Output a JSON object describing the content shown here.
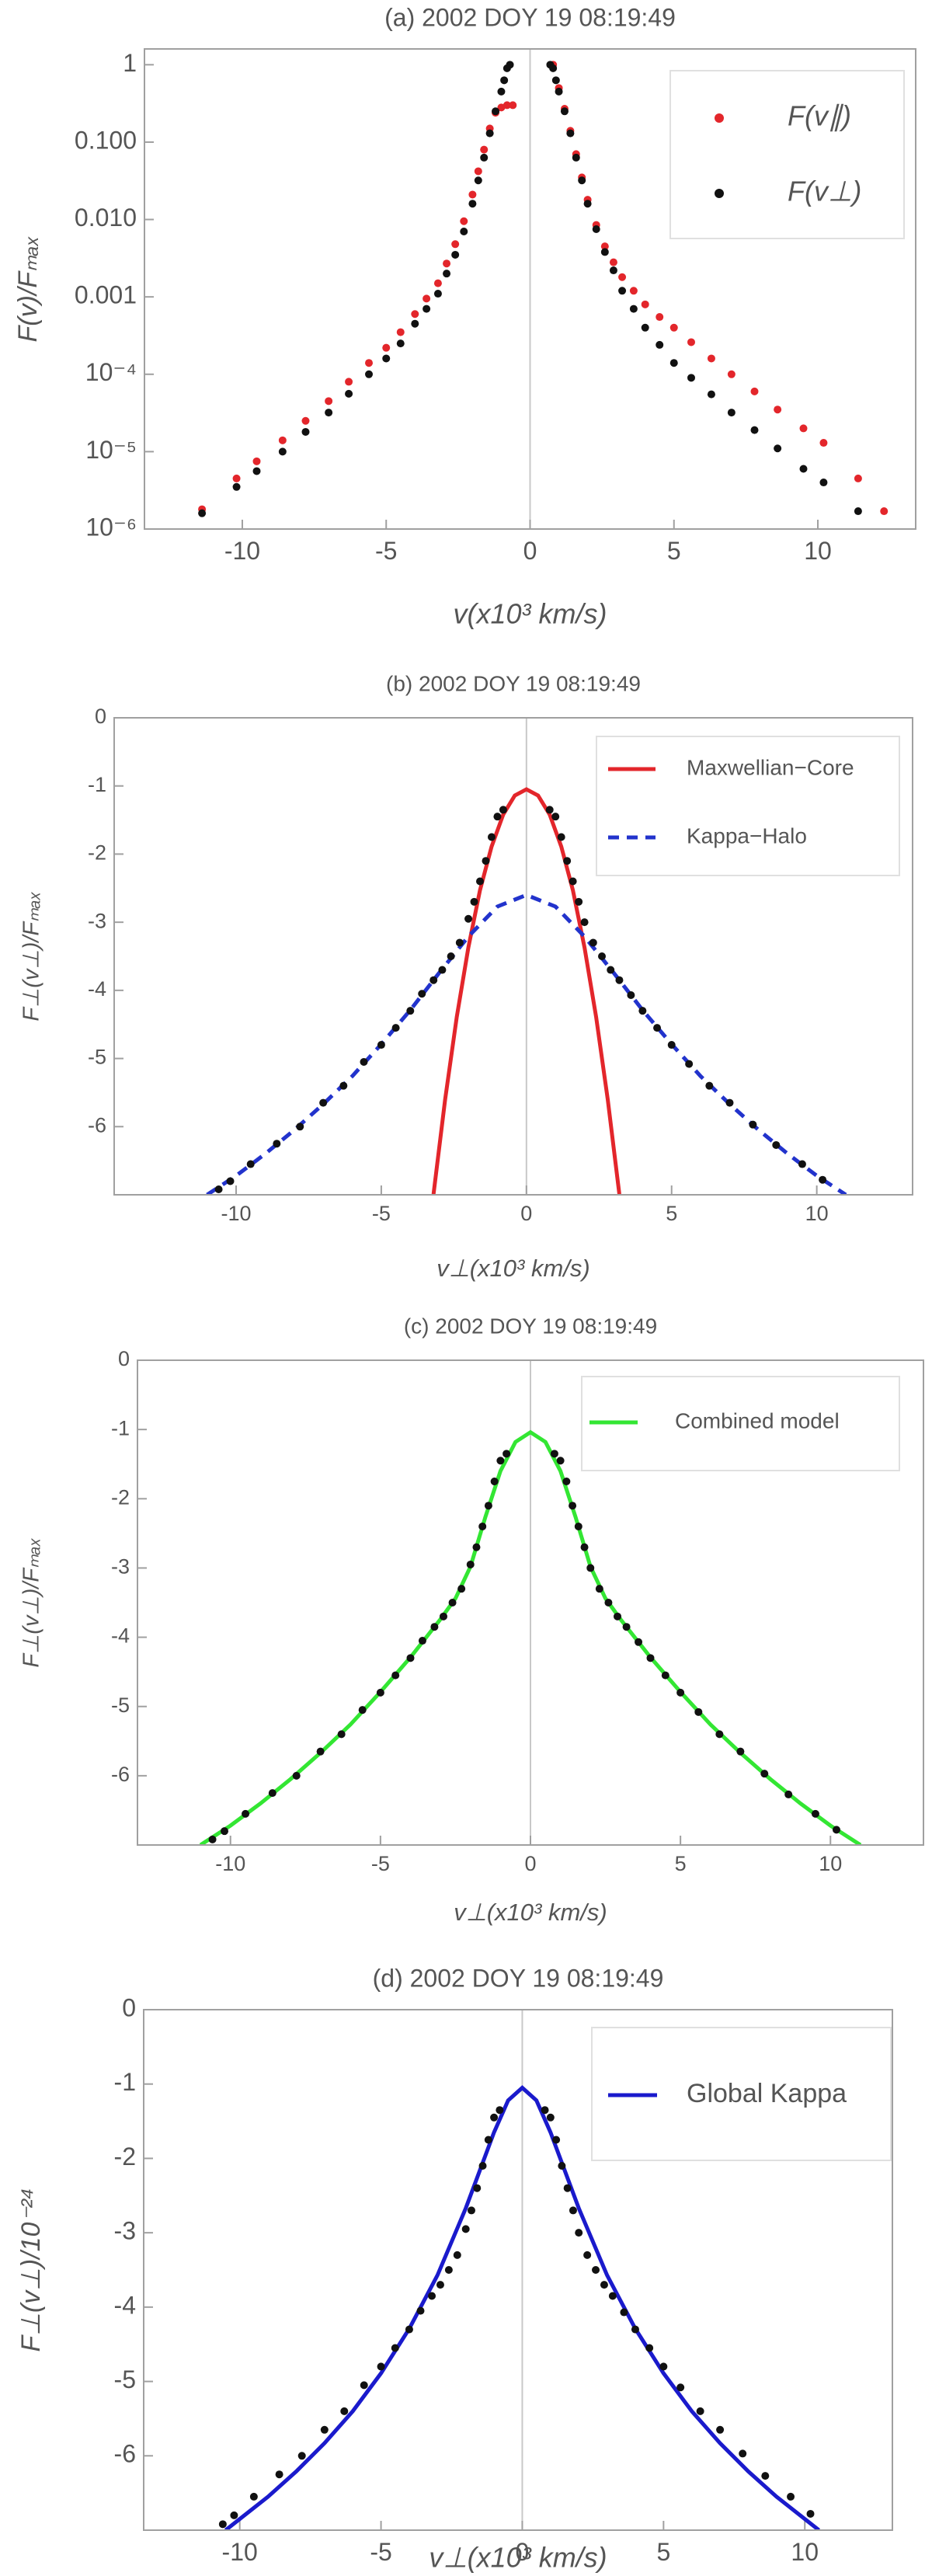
{
  "chart_data": [
    {
      "type": "scatter",
      "title": "(a) 2002 DOY 19 08:19:49",
      "x_label": "v(x10³ km/s)",
      "y_label": "F(v)/Fₘₐₓ",
      "log_y": true,
      "xlim": [
        -13.4,
        13.4
      ],
      "ylim": [
        1e-06,
        1.6
      ],
      "xticks": [
        -10,
        -5,
        0,
        5,
        10
      ],
      "yticks": [
        1,
        {
          "value": 0.1,
          "label": "0.100"
        },
        {
          "value": 0.01,
          "label": "0.010"
        },
        0.001,
        {
          "value": 0.0001,
          "label": "10⁻⁴"
        },
        {
          "value": 1e-05,
          "label": "10⁻⁵"
        },
        {
          "value": 1e-06,
          "label": "10⁻⁶"
        }
      ],
      "legend": "upper right",
      "series": [
        {
          "name": "F(v∥)",
          "color": "#e3262b",
          "style": "markers",
          "x": [
            -11.4,
            -10.2,
            -9.5,
            -8.6,
            -7.8,
            -7.0,
            -6.3,
            -5.6,
            -5.0,
            -4.5,
            -4.0,
            -3.6,
            -3.2,
            -2.9,
            -2.6,
            -2.3,
            -2.0,
            -1.8,
            -1.6,
            -1.4,
            -1.2,
            -1.0,
            -0.8,
            -0.6,
            0.8,
            1.0,
            1.2,
            1.4,
            1.6,
            1.8,
            2.0,
            2.3,
            2.6,
            2.9,
            3.2,
            3.6,
            4.0,
            4.5,
            5.0,
            5.6,
            6.3,
            7.0,
            7.8,
            8.6,
            9.5,
            10.2,
            11.4,
            12.3
          ],
          "values": [
            1.8e-06,
            4.5e-06,
            7.5e-06,
            1.4e-05,
            2.5e-05,
            4.5e-05,
            8e-05,
            0.00014,
            0.00022,
            0.00035,
            0.0006,
            0.00095,
            0.0015,
            0.0027,
            0.0048,
            0.0095,
            0.021,
            0.042,
            0.08,
            0.15,
            0.24,
            0.28,
            0.3,
            0.3,
            1.0,
            0.5,
            0.27,
            0.14,
            0.07,
            0.035,
            0.018,
            0.0085,
            0.0045,
            0.0028,
            0.0018,
            0.0012,
            0.0008,
            0.00055,
            0.0004,
            0.00026,
            0.00016,
            0.0001,
            6e-05,
            3.5e-05,
            2e-05,
            1.3e-05,
            4.5e-06,
            1.7e-06
          ]
        },
        {
          "name": "F(v⊥)",
          "color": "#111111",
          "style": "markers",
          "x": [
            -11.4,
            -10.2,
            -9.5,
            -8.6,
            -7.8,
            -7.0,
            -6.3,
            -5.6,
            -5.0,
            -4.5,
            -4.0,
            -3.6,
            -3.2,
            -2.9,
            -2.6,
            -2.3,
            -2.0,
            -1.8,
            -1.6,
            -1.4,
            -1.2,
            -1.0,
            -0.9,
            -0.8,
            -0.7,
            0.7,
            0.8,
            0.9,
            1.0,
            1.2,
            1.4,
            1.6,
            1.8,
            2.0,
            2.3,
            2.6,
            2.9,
            3.2,
            3.6,
            4.0,
            4.5,
            5.0,
            5.6,
            6.3,
            7.0,
            7.8,
            8.6,
            9.5,
            10.2,
            11.4
          ],
          "values": [
            1.6e-06,
            3.5e-06,
            5.6e-06,
            1e-05,
            1.8e-05,
            3.2e-05,
            5.6e-05,
            0.0001,
            0.00016,
            0.00025,
            0.00045,
            0.0007,
            0.0011,
            0.002,
            0.0035,
            0.007,
            0.016,
            0.032,
            0.063,
            0.13,
            0.25,
            0.45,
            0.63,
            0.9,
            1.0,
            1.0,
            0.9,
            0.63,
            0.45,
            0.25,
            0.13,
            0.063,
            0.032,
            0.016,
            0.0075,
            0.0038,
            0.0022,
            0.0012,
            0.0007,
            0.0004,
            0.00024,
            0.00014,
            9e-05,
            5.5e-05,
            3.2e-05,
            1.9e-05,
            1.1e-05,
            6e-06,
            4e-06,
            1.7e-06
          ]
        }
      ]
    },
    {
      "type": "line",
      "title": "(b) 2002 DOY 19 08:19:49",
      "x_label": "v⊥(x10³ km/s)",
      "y_label": "F⊥(v⊥)/Fₘₐₓ",
      "xlim": [
        -14.2,
        13.3
      ],
      "ylim": [
        -7,
        0
      ],
      "xticks": [
        -10,
        -5,
        0,
        5,
        10
      ],
      "yticks": [
        0,
        -1,
        -2,
        -3,
        -4,
        -5,
        -6
      ],
      "legend": "upper right",
      "series": [
        {
          "name": "Maxwellian−Core",
          "color": "#e3262b",
          "style": "solid",
          "x": [
            -3.2,
            -2.8,
            -2.4,
            -2.0,
            -1.6,
            -1.2,
            -0.8,
            -0.4,
            0,
            0.4,
            0.8,
            1.2,
            1.6,
            2.0,
            2.4,
            2.8,
            3.2
          ],
          "values": [
            -6.99,
            -5.6,
            -4.39,
            -3.37,
            -2.53,
            -1.89,
            -1.42,
            -1.14,
            -1.05,
            -1.14,
            -1.42,
            -1.89,
            -2.53,
            -3.37,
            -4.39,
            -5.6,
            -6.99
          ]
        },
        {
          "name": "Kappa−Halo",
          "color": "#2233cc",
          "style": "dashed",
          "x": [
            -11,
            -10,
            -9,
            -8,
            -7,
            -6,
            -5,
            -4,
            -3,
            -2,
            -1,
            0,
            1,
            2,
            3,
            4,
            5,
            6,
            7,
            8,
            9,
            10,
            11
          ],
          "values": [
            -7.0,
            -6.72,
            -6.4,
            -6.05,
            -5.67,
            -5.26,
            -4.79,
            -4.29,
            -3.74,
            -3.21,
            -2.77,
            -2.6,
            -2.77,
            -3.21,
            -3.74,
            -4.29,
            -4.79,
            -5.26,
            -5.67,
            -6.05,
            -6.4,
            -6.72,
            -7.0
          ]
        },
        {
          "color": "#111111",
          "style": "markers",
          "x": [
            -10.6,
            -10.2,
            -9.5,
            -8.6,
            -7.8,
            -7.0,
            -6.3,
            -5.6,
            -5.0,
            -4.5,
            -4.0,
            -3.6,
            -3.2,
            -2.9,
            -2.6,
            -2.3,
            -2.0,
            -1.8,
            -1.6,
            -1.4,
            -1.2,
            -1.0,
            -0.8,
            0.8,
            1.0,
            1.2,
            1.4,
            1.6,
            1.8,
            2.0,
            2.3,
            2.6,
            2.9,
            3.2,
            3.6,
            4.0,
            4.5,
            5.0,
            5.6,
            6.3,
            7.0,
            7.8,
            8.6,
            9.5,
            10.2
          ],
          "values": [
            -6.92,
            -6.8,
            -6.55,
            -6.25,
            -6.0,
            -5.65,
            -5.4,
            -5.05,
            -4.8,
            -4.55,
            -4.3,
            -4.05,
            -3.85,
            -3.7,
            -3.5,
            -3.3,
            -2.95,
            -2.7,
            -2.4,
            -2.1,
            -1.75,
            -1.45,
            -1.35,
            -1.35,
            -1.45,
            -1.75,
            -2.1,
            -2.4,
            -2.7,
            -3.0,
            -3.3,
            -3.5,
            -3.7,
            -3.85,
            -4.07,
            -4.3,
            -4.55,
            -4.8,
            -5.08,
            -5.4,
            -5.65,
            -5.97,
            -6.27,
            -6.55,
            -6.78
          ]
        }
      ]
    },
    {
      "type": "line",
      "title": "(c) 2002 DOY 19 08:19:49",
      "x_label": "v⊥(x10³ km/s)",
      "y_label": "F⊥(v⊥)/Fₘₐₓ",
      "xlim": [
        -13.1,
        13.1
      ],
      "ylim": [
        -7,
        0
      ],
      "xticks": [
        -10,
        -5,
        0,
        5,
        10
      ],
      "yticks": [
        0,
        -1,
        -2,
        -3,
        -4,
        -5,
        -6
      ],
      "legend": "upper right",
      "series": [
        {
          "name": "Combined model",
          "color": "#33e633",
          "style": "solid",
          "x": [
            -11,
            -10,
            -9,
            -8,
            -7,
            -6,
            -5,
            -4,
            -3,
            -2.5,
            -2,
            -1.5,
            -1,
            -0.5,
            0,
            0.5,
            1,
            1.5,
            2,
            2.5,
            3,
            4,
            5,
            6,
            7,
            8,
            9,
            10,
            11
          ],
          "values": [
            -7.0,
            -6.72,
            -6.4,
            -6.05,
            -5.67,
            -5.26,
            -4.79,
            -4.29,
            -3.74,
            -3.44,
            -2.98,
            -2.26,
            -1.6,
            -1.18,
            -1.04,
            -1.18,
            -1.6,
            -2.26,
            -2.98,
            -3.44,
            -3.74,
            -4.29,
            -4.79,
            -5.26,
            -5.67,
            -6.05,
            -6.4,
            -6.72,
            -7.0
          ]
        },
        {
          "color": "#111111",
          "style": "markers",
          "x": [
            -10.6,
            -10.2,
            -9.5,
            -8.6,
            -7.8,
            -7.0,
            -6.3,
            -5.6,
            -5.0,
            -4.5,
            -4.0,
            -3.6,
            -3.2,
            -2.9,
            -2.6,
            -2.3,
            -2.0,
            -1.8,
            -1.6,
            -1.4,
            -1.2,
            -1.0,
            -0.8,
            0.8,
            1.0,
            1.2,
            1.4,
            1.6,
            1.8,
            2.0,
            2.3,
            2.6,
            2.9,
            3.2,
            3.6,
            4.0,
            4.5,
            5.0,
            5.6,
            6.3,
            7.0,
            7.8,
            8.6,
            9.5,
            10.2
          ],
          "values": [
            -6.92,
            -6.8,
            -6.55,
            -6.25,
            -6.0,
            -5.65,
            -5.4,
            -5.05,
            -4.8,
            -4.55,
            -4.3,
            -4.05,
            -3.85,
            -3.7,
            -3.5,
            -3.3,
            -2.95,
            -2.7,
            -2.4,
            -2.1,
            -1.75,
            -1.45,
            -1.35,
            -1.35,
            -1.45,
            -1.75,
            -2.1,
            -2.4,
            -2.7,
            -3.0,
            -3.3,
            -3.5,
            -3.7,
            -3.85,
            -4.07,
            -4.3,
            -4.55,
            -4.8,
            -5.08,
            -5.4,
            -5.65,
            -5.97,
            -6.27,
            -6.55,
            -6.78
          ]
        }
      ]
    },
    {
      "type": "line",
      "title": "(d) 2002 DOY 19 08:19:49",
      "x_label": "v⊥(x10³ km/s)",
      "y_label": "F⊥(v⊥)/10⁻²⁴",
      "xlim": [
        -13.4,
        13.1
      ],
      "ylim": [
        -7,
        0
      ],
      "xticks": [
        -10,
        -5,
        0,
        5,
        10
      ],
      "yticks": [
        0,
        -1,
        -2,
        -3,
        -4,
        -5,
        -6
      ],
      "legend": "upper right",
      "series": [
        {
          "name": "Global Kappa",
          "color": "#1a1acc",
          "style": "solid",
          "x": [
            -10.5,
            -10,
            -9,
            -8,
            -7,
            -6,
            -5,
            -4,
            -3,
            -2,
            -1.5,
            -1,
            -0.5,
            0,
            0.5,
            1,
            1.5,
            2,
            3,
            4,
            5,
            6,
            7,
            8,
            9,
            10,
            10.5
          ],
          "values": [
            -7.0,
            -6.85,
            -6.55,
            -6.21,
            -5.83,
            -5.4,
            -4.89,
            -4.29,
            -3.57,
            -2.67,
            -2.16,
            -1.65,
            -1.22,
            -1.05,
            -1.22,
            -1.65,
            -2.16,
            -2.67,
            -3.57,
            -4.29,
            -4.89,
            -5.4,
            -5.83,
            -6.21,
            -6.55,
            -6.85,
            -7.0
          ]
        },
        {
          "color": "#111111",
          "style": "markers",
          "x": [
            -10.6,
            -10.2,
            -9.5,
            -8.6,
            -7.8,
            -7.0,
            -6.3,
            -5.6,
            -5.0,
            -4.5,
            -4.0,
            -3.6,
            -3.2,
            -2.9,
            -2.6,
            -2.3,
            -2.0,
            -1.8,
            -1.6,
            -1.4,
            -1.2,
            -1.0,
            -0.8,
            0.8,
            1.0,
            1.2,
            1.4,
            1.6,
            1.8,
            2.0,
            2.3,
            2.6,
            2.9,
            3.2,
            3.6,
            4.0,
            4.5,
            5.0,
            5.6,
            6.3,
            7.0,
            7.8,
            8.6,
            9.5,
            10.2
          ],
          "values": [
            -6.92,
            -6.8,
            -6.55,
            -6.25,
            -6.0,
            -5.65,
            -5.4,
            -5.05,
            -4.8,
            -4.55,
            -4.3,
            -4.05,
            -3.85,
            -3.7,
            -3.5,
            -3.3,
            -2.95,
            -2.7,
            -2.4,
            -2.1,
            -1.75,
            -1.45,
            -1.35,
            -1.35,
            -1.45,
            -1.75,
            -2.1,
            -2.4,
            -2.7,
            -3.0,
            -3.3,
            -3.5,
            -3.7,
            -3.85,
            -4.07,
            -4.3,
            -4.55,
            -4.8,
            -5.08,
            -5.4,
            -5.65,
            -5.97,
            -6.27,
            -6.55,
            -6.78
          ]
        }
      ]
    }
  ]
}
